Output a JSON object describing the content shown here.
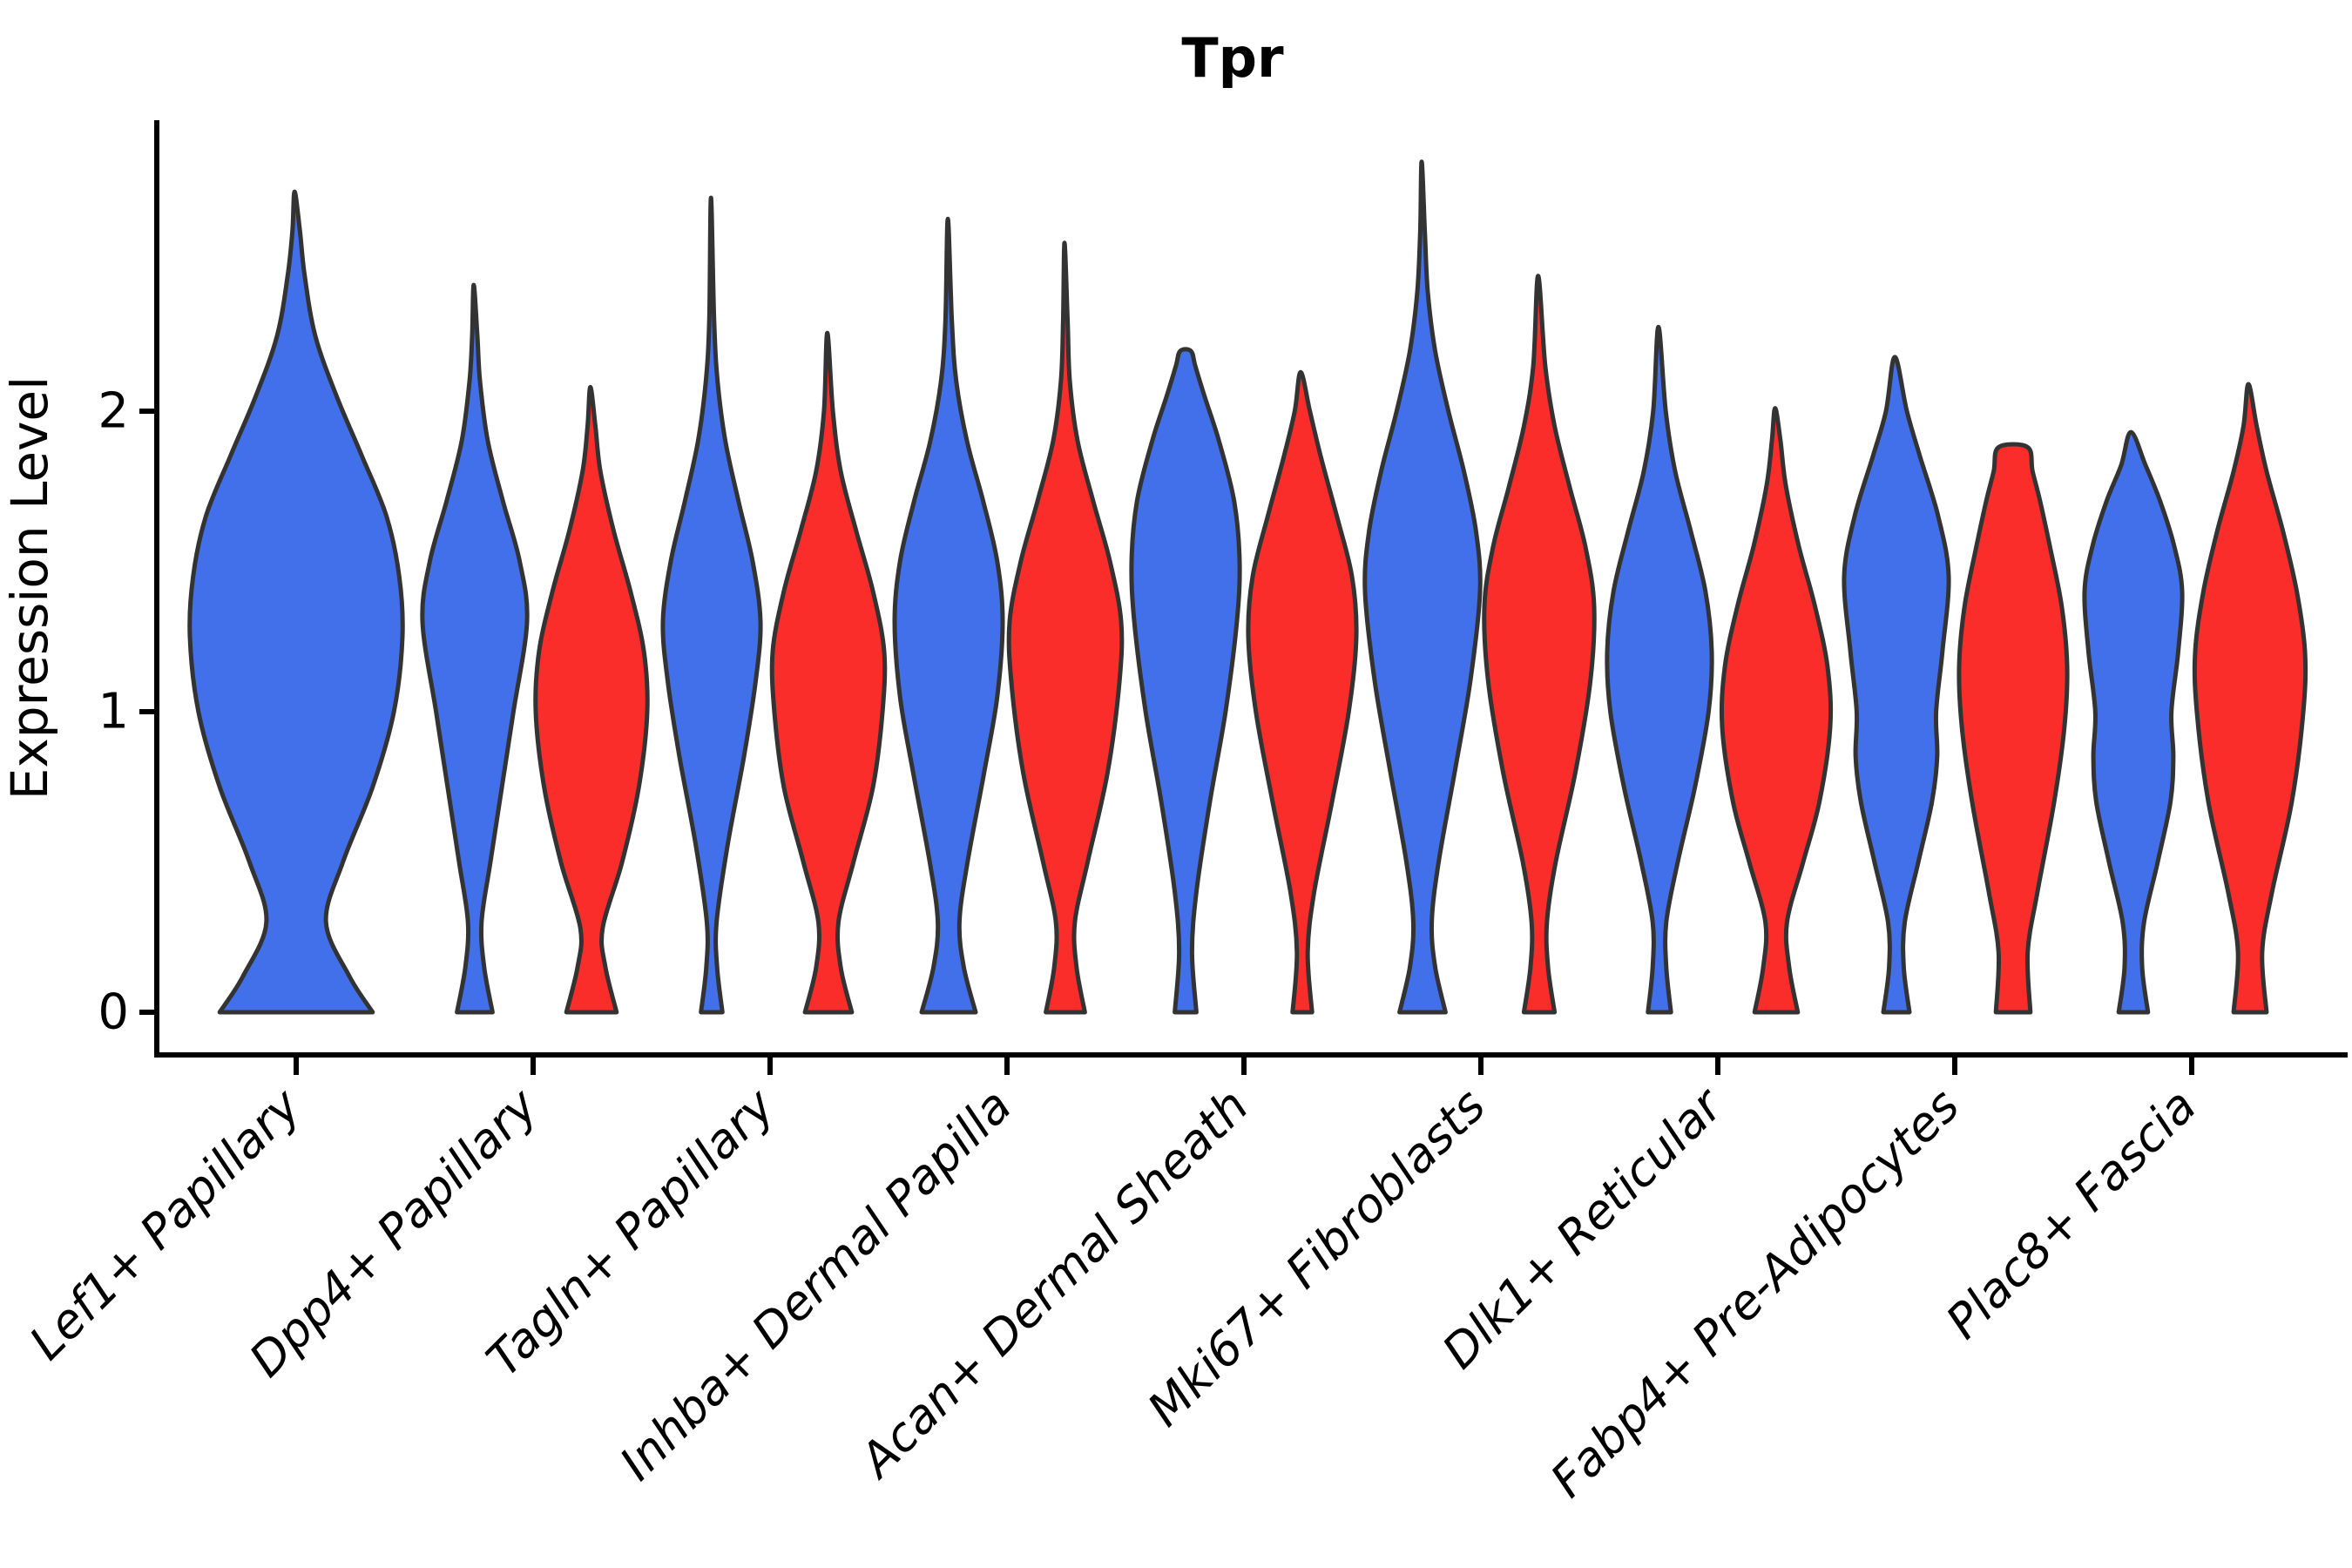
{
  "title": "Tpr",
  "axes": {
    "ylabel": "Expression Level",
    "y_ticks": [
      "0",
      "1",
      "2"
    ],
    "x_labels": [
      "Lef1+ Papillary",
      "Dpp4+ Papillary",
      "Tagln+ Papillary",
      "Inhba+ Dermal Papilla",
      "Acan+ Dermal Sheath",
      "Mki67+ Fibroblasts",
      "Dlk1+ Reticular",
      "Fabp4+ Pre-Adipocytes",
      "Plac8+ Fascia"
    ]
  },
  "chart_data": {
    "type": "violin",
    "title": "Tpr",
    "xlabel": "",
    "ylabel": "Expression Level",
    "ylim": [
      -0.14,
      2.97
    ],
    "y_tick_values": [
      0,
      1,
      2
    ],
    "grid": false,
    "legend": "none",
    "categories": [
      "Lef1+ Papillary",
      "Dpp4+ Papillary",
      "Tagln+ Papillary",
      "Inhba+ Dermal Papilla",
      "Acan+ Dermal Sheath",
      "Mki67+ Fibroblasts",
      "Dlk1+ Reticular",
      "Fabp4+ Pre-Adipocytes",
      "Plac8+ Fascia"
    ],
    "groups": [
      {
        "id": "g1",
        "color": "#4270EB"
      },
      {
        "id": "g2",
        "color": "#FB2D2A"
      }
    ],
    "outline_color": "#333333",
    "violins": [
      {
        "cat": 0,
        "group": "g1",
        "pos": "center",
        "w": 122,
        "max": 2.73,
        "profile": [
          [
            0,
            0.72
          ],
          [
            0.12,
            0.5
          ],
          [
            0.3,
            0.28
          ],
          [
            0.5,
            0.44
          ],
          [
            0.75,
            0.72
          ],
          [
            1.0,
            0.92
          ],
          [
            1.25,
            1.0
          ],
          [
            1.45,
            0.97
          ],
          [
            1.65,
            0.85
          ],
          [
            1.85,
            0.62
          ],
          [
            2.05,
            0.38
          ],
          [
            2.25,
            0.18
          ],
          [
            2.45,
            0.08
          ],
          [
            2.6,
            0.035
          ],
          [
            2.73,
            0.015
          ]
        ]
      },
      {
        "cat": 1,
        "group": "g1",
        "pos": "left",
        "w": 60,
        "max": 2.42,
        "profile": [
          [
            0,
            0.34
          ],
          [
            0.15,
            0.18
          ],
          [
            0.3,
            0.13
          ],
          [
            0.5,
            0.3
          ],
          [
            0.75,
            0.52
          ],
          [
            1.0,
            0.74
          ],
          [
            1.3,
            1.0
          ],
          [
            1.5,
            0.86
          ],
          [
            1.7,
            0.54
          ],
          [
            1.9,
            0.25
          ],
          [
            2.1,
            0.1
          ],
          [
            2.25,
            0.05
          ],
          [
            2.42,
            0.02
          ]
        ]
      },
      {
        "cat": 1,
        "group": "g2",
        "pos": "right",
        "w": 64,
        "max": 2.08,
        "profile": [
          [
            0,
            0.45
          ],
          [
            0.15,
            0.25
          ],
          [
            0.28,
            0.2
          ],
          [
            0.5,
            0.55
          ],
          [
            0.75,
            0.85
          ],
          [
            1.0,
            1.0
          ],
          [
            1.2,
            0.94
          ],
          [
            1.4,
            0.7
          ],
          [
            1.6,
            0.4
          ],
          [
            1.8,
            0.16
          ],
          [
            1.95,
            0.07
          ],
          [
            2.08,
            0.02
          ]
        ]
      },
      {
        "cat": 2,
        "group": "g1",
        "pos": "left",
        "w": 56,
        "max": 2.71,
        "profile": [
          [
            0,
            0.22
          ],
          [
            0.15,
            0.11
          ],
          [
            0.3,
            0.1
          ],
          [
            0.55,
            0.32
          ],
          [
            0.85,
            0.66
          ],
          [
            1.1,
            0.9
          ],
          [
            1.3,
            1.0
          ],
          [
            1.5,
            0.84
          ],
          [
            1.7,
            0.55
          ],
          [
            1.9,
            0.28
          ],
          [
            2.1,
            0.12
          ],
          [
            2.3,
            0.05
          ],
          [
            2.71,
            0.015
          ]
        ]
      },
      {
        "cat": 2,
        "group": "g2",
        "pos": "right",
        "w": 64,
        "max": 2.26,
        "profile": [
          [
            0,
            0.42
          ],
          [
            0.15,
            0.22
          ],
          [
            0.3,
            0.18
          ],
          [
            0.5,
            0.45
          ],
          [
            0.75,
            0.8
          ],
          [
            1.0,
            0.97
          ],
          [
            1.2,
            1.0
          ],
          [
            1.4,
            0.8
          ],
          [
            1.6,
            0.5
          ],
          [
            1.8,
            0.22
          ],
          [
            2.0,
            0.08
          ],
          [
            2.26,
            0.02
          ]
        ]
      },
      {
        "cat": 3,
        "group": "g1",
        "pos": "left",
        "w": 62,
        "max": 2.64,
        "profile": [
          [
            0,
            0.5
          ],
          [
            0.15,
            0.28
          ],
          [
            0.3,
            0.2
          ],
          [
            0.5,
            0.35
          ],
          [
            0.8,
            0.66
          ],
          [
            1.05,
            0.9
          ],
          [
            1.3,
            1.0
          ],
          [
            1.5,
            0.9
          ],
          [
            1.7,
            0.64
          ],
          [
            1.9,
            0.34
          ],
          [
            2.1,
            0.14
          ],
          [
            2.3,
            0.06
          ],
          [
            2.64,
            0.015
          ]
        ]
      },
      {
        "cat": 3,
        "group": "g2",
        "pos": "right",
        "w": 64,
        "max": 2.56,
        "profile": [
          [
            0,
            0.35
          ],
          [
            0.15,
            0.2
          ],
          [
            0.3,
            0.17
          ],
          [
            0.5,
            0.4
          ],
          [
            0.8,
            0.76
          ],
          [
            1.1,
            0.97
          ],
          [
            1.3,
            1.0
          ],
          [
            1.5,
            0.8
          ],
          [
            1.7,
            0.5
          ],
          [
            1.9,
            0.22
          ],
          [
            2.1,
            0.08
          ],
          [
            2.3,
            0.04
          ],
          [
            2.56,
            0.015
          ]
        ]
      },
      {
        "cat": 4,
        "group": "g1",
        "pos": "left",
        "w": 62,
        "max": 2.2,
        "profile": [
          [
            0,
            0.2
          ],
          [
            0.2,
            0.12
          ],
          [
            0.4,
            0.2
          ],
          [
            0.7,
            0.45
          ],
          [
            1.0,
            0.74
          ],
          [
            1.3,
            0.95
          ],
          [
            1.5,
            1.0
          ],
          [
            1.7,
            0.9
          ],
          [
            1.9,
            0.62
          ],
          [
            2.05,
            0.35
          ],
          [
            2.15,
            0.18
          ],
          [
            2.2,
            0.1
          ]
        ]
      },
      {
        "cat": 4,
        "group": "g2",
        "pos": "right",
        "w": 62,
        "max": 2.13,
        "profile": [
          [
            0,
            0.18
          ],
          [
            0.2,
            0.1
          ],
          [
            0.4,
            0.22
          ],
          [
            0.7,
            0.55
          ],
          [
            1.0,
            0.86
          ],
          [
            1.25,
            1.0
          ],
          [
            1.45,
            0.92
          ],
          [
            1.65,
            0.64
          ],
          [
            1.85,
            0.34
          ],
          [
            2.0,
            0.14
          ],
          [
            2.13,
            0.03
          ]
        ]
      },
      {
        "cat": 5,
        "group": "g1",
        "pos": "left",
        "w": 66,
        "max": 2.83,
        "profile": [
          [
            0,
            0.4
          ],
          [
            0.15,
            0.22
          ],
          [
            0.3,
            0.16
          ],
          [
            0.5,
            0.28
          ],
          [
            0.8,
            0.56
          ],
          [
            1.1,
            0.83
          ],
          [
            1.4,
            1.0
          ],
          [
            1.6,
            0.93
          ],
          [
            1.8,
            0.72
          ],
          [
            2.0,
            0.45
          ],
          [
            2.2,
            0.22
          ],
          [
            2.4,
            0.09
          ],
          [
            2.6,
            0.04
          ],
          [
            2.83,
            0.015
          ]
        ]
      },
      {
        "cat": 5,
        "group": "g2",
        "pos": "right",
        "w": 63,
        "max": 2.45,
        "profile": [
          [
            0,
            0.28
          ],
          [
            0.15,
            0.16
          ],
          [
            0.3,
            0.14
          ],
          [
            0.5,
            0.3
          ],
          [
            0.8,
            0.66
          ],
          [
            1.1,
            0.93
          ],
          [
            1.35,
            1.0
          ],
          [
            1.55,
            0.84
          ],
          [
            1.75,
            0.55
          ],
          [
            1.95,
            0.28
          ],
          [
            2.15,
            0.11
          ],
          [
            2.45,
            0.02
          ]
        ]
      },
      {
        "cat": 6,
        "group": "g1",
        "pos": "left",
        "w": 60,
        "max": 2.28,
        "profile": [
          [
            0,
            0.22
          ],
          [
            0.15,
            0.13
          ],
          [
            0.3,
            0.13
          ],
          [
            0.5,
            0.35
          ],
          [
            0.75,
            0.68
          ],
          [
            1.0,
            0.94
          ],
          [
            1.2,
            1.0
          ],
          [
            1.4,
            0.88
          ],
          [
            1.6,
            0.6
          ],
          [
            1.8,
            0.3
          ],
          [
            2.0,
            0.12
          ],
          [
            2.28,
            0.02
          ]
        ]
      },
      {
        "cat": 6,
        "group": "g2",
        "pos": "right",
        "w": 62,
        "max": 2.01,
        "profile": [
          [
            0,
            0.4
          ],
          [
            0.15,
            0.24
          ],
          [
            0.3,
            0.2
          ],
          [
            0.5,
            0.5
          ],
          [
            0.7,
            0.8
          ],
          [
            0.95,
            1.0
          ],
          [
            1.15,
            0.95
          ],
          [
            1.35,
            0.72
          ],
          [
            1.55,
            0.42
          ],
          [
            1.75,
            0.18
          ],
          [
            1.9,
            0.08
          ],
          [
            2.01,
            0.02
          ]
        ]
      },
      {
        "cat": 7,
        "group": "g1",
        "pos": "left",
        "w": 60,
        "max": 2.18,
        "profile": [
          [
            0,
            0.25
          ],
          [
            0.15,
            0.14
          ],
          [
            0.3,
            0.16
          ],
          [
            0.5,
            0.42
          ],
          [
            0.7,
            0.68
          ],
          [
            0.85,
            0.78
          ],
          [
            1.0,
            0.76
          ],
          [
            1.2,
            0.88
          ],
          [
            1.45,
            1.0
          ],
          [
            1.65,
            0.8
          ],
          [
            1.85,
            0.45
          ],
          [
            2.0,
            0.2
          ],
          [
            2.18,
            0.03
          ]
        ]
      },
      {
        "cat": 7,
        "group": "g2",
        "pos": "right",
        "w": 62,
        "max": 1.88,
        "profile": [
          [
            0,
            0.32
          ],
          [
            0.2,
            0.27
          ],
          [
            0.4,
            0.45
          ],
          [
            0.7,
            0.76
          ],
          [
            0.95,
            0.95
          ],
          [
            1.15,
            1.0
          ],
          [
            1.35,
            0.9
          ],
          [
            1.55,
            0.68
          ],
          [
            1.7,
            0.5
          ],
          [
            1.8,
            0.36
          ],
          [
            1.88,
            0.27
          ]
        ]
      },
      {
        "cat": 8,
        "group": "g1",
        "pos": "left",
        "w": 56,
        "max": 1.93,
        "profile": [
          [
            0,
            0.3
          ],
          [
            0.15,
            0.18
          ],
          [
            0.3,
            0.22
          ],
          [
            0.5,
            0.5
          ],
          [
            0.7,
            0.76
          ],
          [
            0.85,
            0.82
          ],
          [
            1.0,
            0.78
          ],
          [
            1.2,
            0.92
          ],
          [
            1.4,
            1.0
          ],
          [
            1.55,
            0.84
          ],
          [
            1.7,
            0.55
          ],
          [
            1.82,
            0.25
          ],
          [
            1.93,
            0.05
          ]
        ]
      },
      {
        "cat": 8,
        "group": "g2",
        "pos": "right",
        "w": 63,
        "max": 2.09,
        "profile": [
          [
            0,
            0.3
          ],
          [
            0.2,
            0.22
          ],
          [
            0.4,
            0.4
          ],
          [
            0.7,
            0.76
          ],
          [
            1.0,
            0.97
          ],
          [
            1.2,
            1.0
          ],
          [
            1.4,
            0.85
          ],
          [
            1.6,
            0.6
          ],
          [
            1.8,
            0.3
          ],
          [
            1.95,
            0.12
          ],
          [
            2.09,
            0.03
          ]
        ]
      }
    ]
  }
}
